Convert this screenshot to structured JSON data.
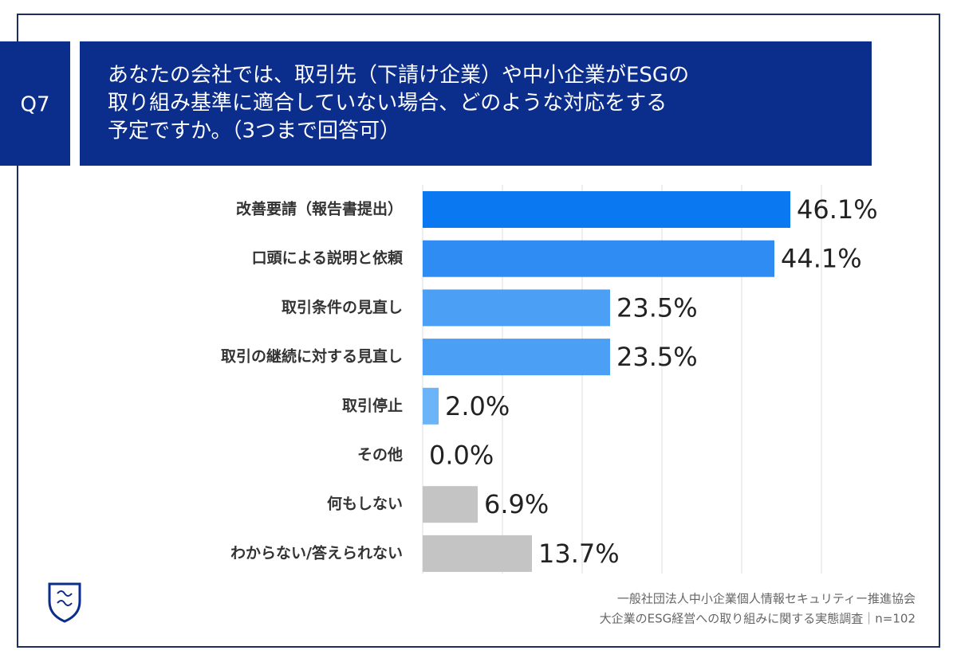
{
  "chart_data": {
    "type": "bar",
    "orientation": "horizontal",
    "question_number": "Q7",
    "title": [
      "あなたの会社では、取引先（下請け企業）や中小企業がESGの",
      "取り組み基準に適合していない場合、どのような対応をする",
      "予定ですか。（3つまで回答可）"
    ],
    "categories": [
      "改善要請（報告書提出）",
      "口頭による説明と依頼",
      "取引条件の見直し",
      "取引の継続に対する見直し",
      "取引停止",
      "その他",
      "何もしない",
      "わからない/答えられない"
    ],
    "values": [
      46.1,
      44.1,
      23.5,
      23.5,
      2.0,
      0.0,
      6.9,
      13.7
    ],
    "value_labels": [
      "46.1%",
      "44.1%",
      "23.5%",
      "23.5%",
      "2.0%",
      "0.0%",
      "6.9%",
      "13.7%"
    ],
    "colors": [
      "#0a78f0",
      "#2f8cf3",
      "#4ba0f6",
      "#4ba0f6",
      "#6cb4f8",
      "#6cb4f8",
      "#c4c4c4",
      "#c4c4c4"
    ],
    "xlim": [
      0,
      50
    ],
    "xticks": [
      0,
      10,
      20,
      30,
      40,
      50
    ],
    "grid": true,
    "source": [
      "一般社団法人中小企業個人情報セキュリティー推進協会",
      "大企業のESG経営への取り組みに関する実態調査｜n=102"
    ]
  }
}
